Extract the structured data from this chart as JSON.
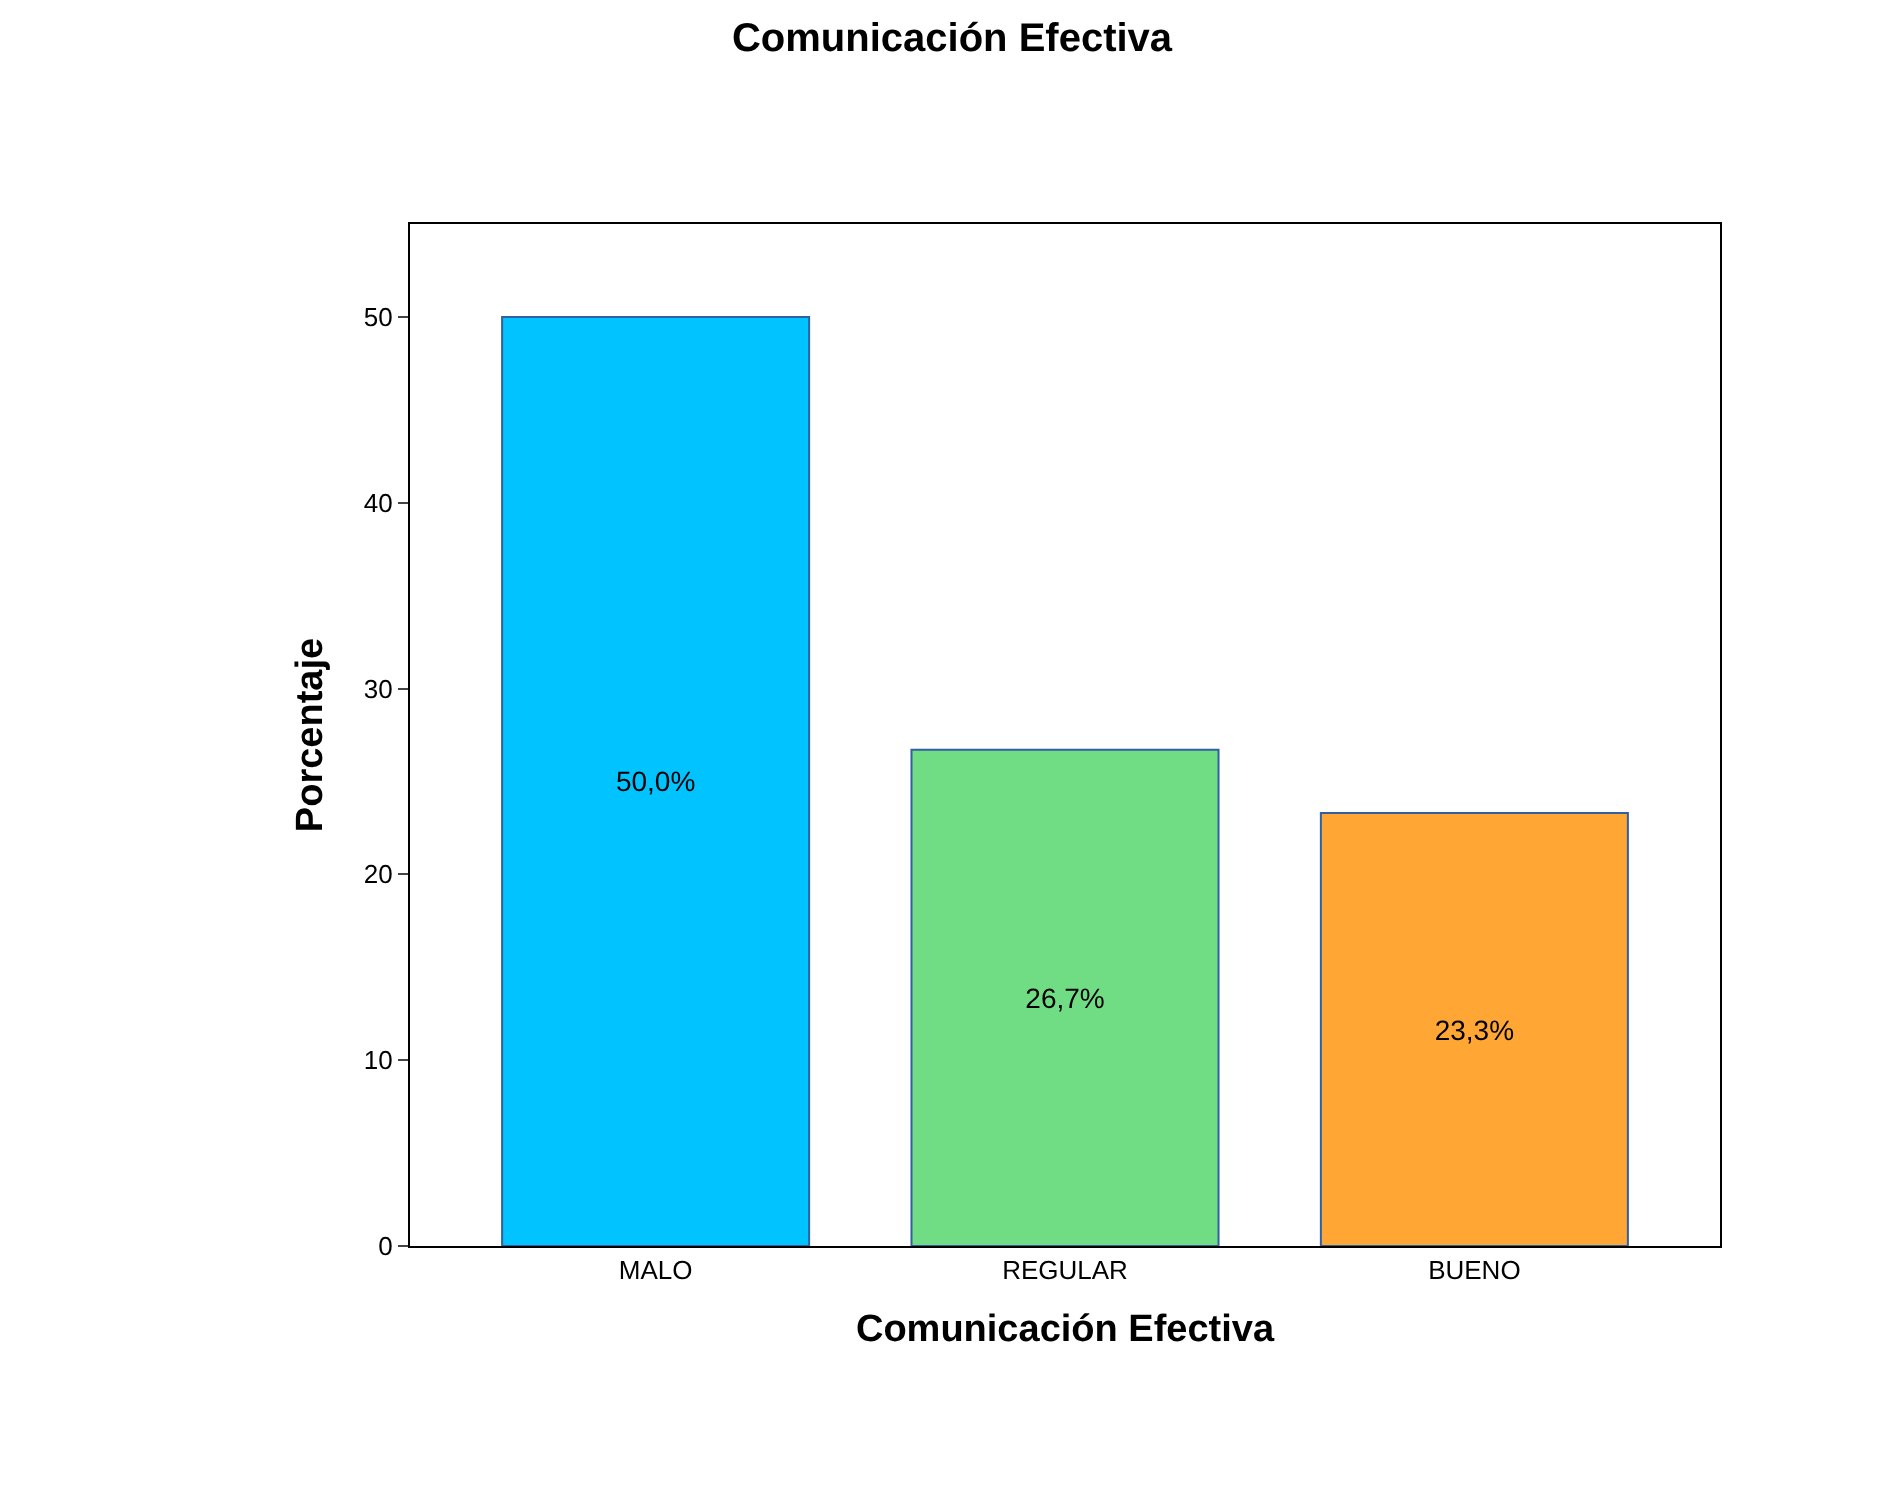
{
  "chart_data": {
    "type": "bar",
    "title": "Comunicación Efectiva",
    "xlabel": "Comunicación Efectiva",
    "ylabel": "Porcentaje",
    "categories": [
      "MALO",
      "REGULAR",
      "BUENO"
    ],
    "values": [
      50.0,
      26.7,
      23.3
    ],
    "value_labels": [
      "50,0%",
      "26,7%",
      "23,3%"
    ],
    "colors": [
      "#00c3ff",
      "#70dd84",
      "#ffa634"
    ],
    "ylim": [
      0,
      55
    ],
    "yticks": [
      0,
      10,
      20,
      30,
      40,
      50
    ]
  }
}
